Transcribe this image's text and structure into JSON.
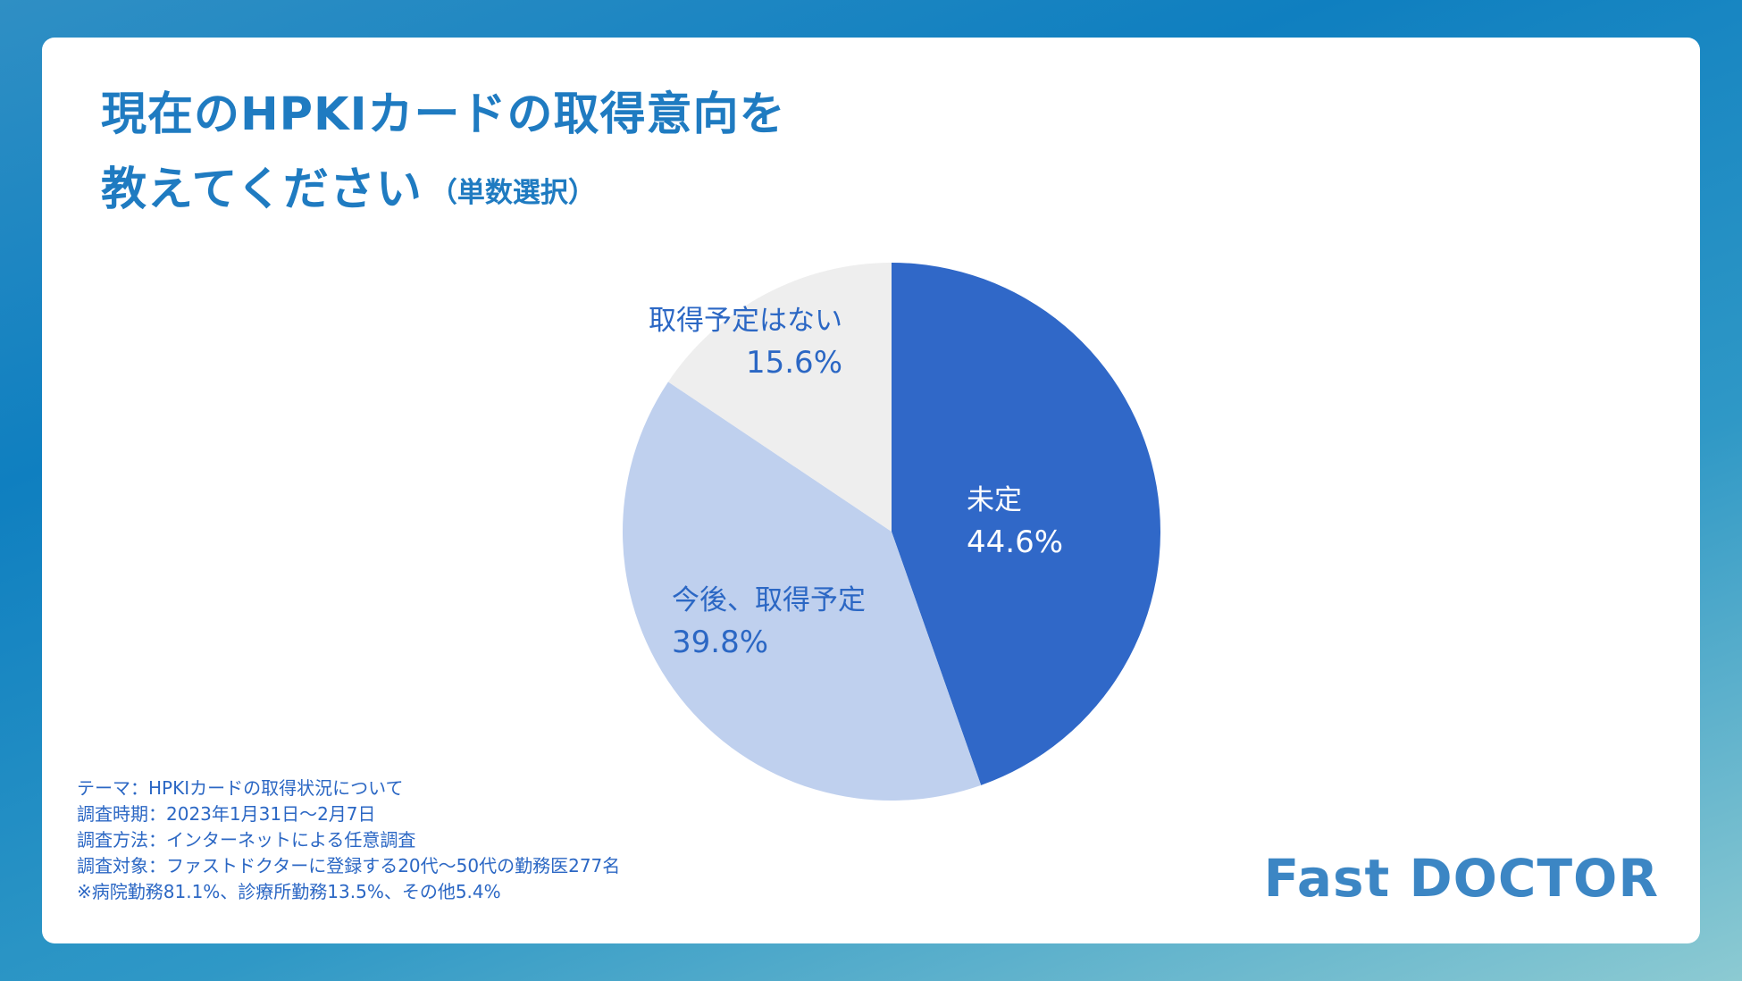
{
  "title": {
    "line1": "現在のHPKIカードの取得意向を",
    "line2": "教えてください",
    "sub": "（単数選択）"
  },
  "colors": {
    "title": "#1f7bc1",
    "slice_undecided": "#3068c8",
    "slice_planned": "#bfd0ee",
    "slice_none": "#eeeeee",
    "label_dark_bg": "#ffffff",
    "label_light_bg": "#2b67c4",
    "logo": "#3c86c4"
  },
  "chart_data": {
    "type": "pie",
    "title": "現在のHPKIカードの取得意向を教えてください（単数選択）",
    "unit": "%",
    "slices": [
      {
        "label": "未定",
        "value": 44.6,
        "display": "44.6%"
      },
      {
        "label": "今後、取得予定",
        "value": 39.8,
        "display": "39.8%"
      },
      {
        "label": "取得予定はない",
        "value": 15.6,
        "display": "15.6%"
      }
    ],
    "start": "12 o'clock",
    "direction": "clockwise"
  },
  "footnote": [
    "テーマ：HPKIカードの取得状況について",
    "調査時期：2023年1月31日〜2月7日",
    "調査方法：インターネットによる任意調査",
    "調査対象：ファストドクターに登録する20代〜50代の勤務医277名",
    "※病院勤務81.1%、診療所勤務13.5%、その他5.4%"
  ],
  "logo": "Fast DOCTOR"
}
